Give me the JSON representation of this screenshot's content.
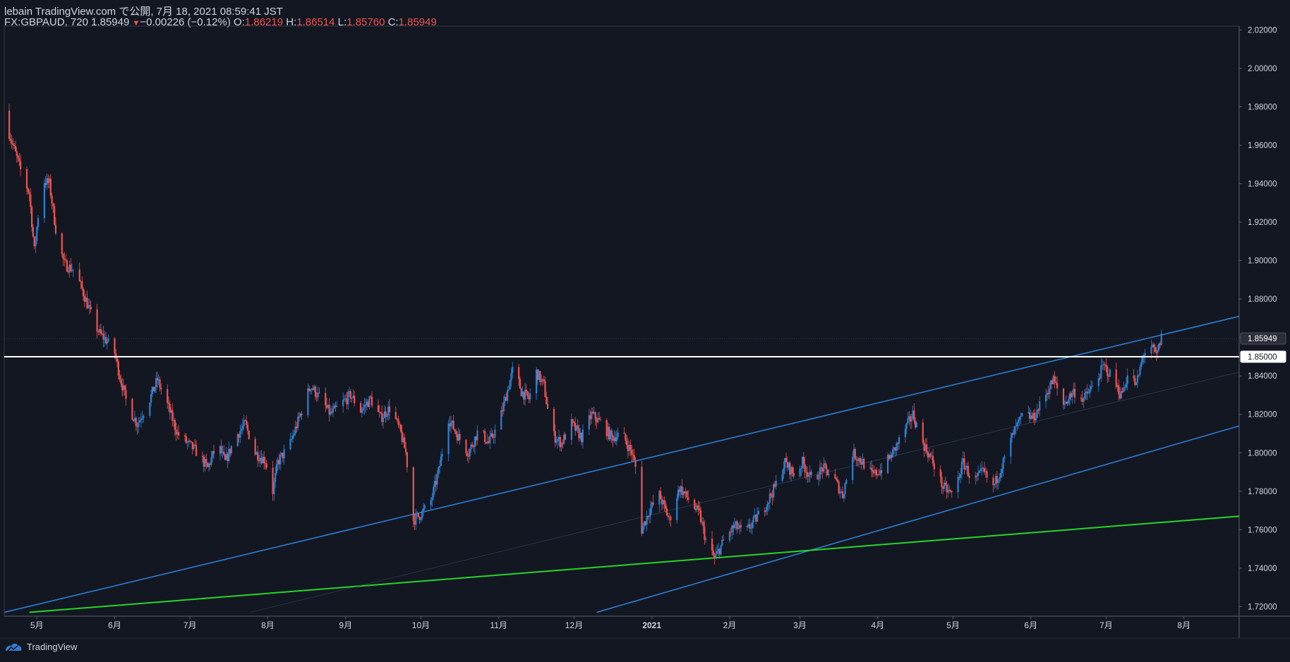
{
  "header": {
    "publish_line": "lebain TradingView.com で公開, 7月 18, 2021 08:59:41 JST",
    "symbol": "FX:GBPAUD, 720",
    "last": "1.85949",
    "change_arrow": "▼",
    "change": "−0.00226 (−0.12%)",
    "o_label": "O:",
    "o_value": "1.86219",
    "h_label": "H:",
    "h_value": "1.86514",
    "l_label": "L:",
    "l_value": "1.85760",
    "c_label": "C:",
    "c_value": "1.85949"
  },
  "footer": {
    "brand": "TradingView"
  },
  "colors": {
    "background": "#131722",
    "up": "#2f80d1",
    "down": "#ef5350",
    "channel": "#2a7fd4",
    "support": "#27d627",
    "level_line": "#ffffff",
    "axis_text": "#d1d4dc"
  },
  "chart_data": {
    "type": "candlestick",
    "symbol": "FX:GBPAUD",
    "interval": "720",
    "ylim": [
      1.715,
      2.022
    ],
    "y_ticks": [
      "1.72000",
      "1.74000",
      "1.76000",
      "1.78000",
      "1.80000",
      "1.82000",
      "1.84000",
      "1.86000",
      "1.88000",
      "1.90000",
      "1.92000",
      "1.94000",
      "1.96000",
      "1.98000",
      "2.00000",
      "2.02000"
    ],
    "x_ticks": [
      {
        "label": "5月",
        "date": "2020-05-01"
      },
      {
        "label": "6月",
        "date": "2020-06-01"
      },
      {
        "label": "7月",
        "date": "2020-07-01"
      },
      {
        "label": "8月",
        "date": "2020-08-01"
      },
      {
        "label": "9月",
        "date": "2020-09-01"
      },
      {
        "label": "10月",
        "date": "2020-10-01"
      },
      {
        "label": "11月",
        "date": "2020-11-01"
      },
      {
        "label": "12月",
        "date": "2020-12-01"
      },
      {
        "label": "2021",
        "date": "2021-01-01"
      },
      {
        "label": "2月",
        "date": "2021-02-01"
      },
      {
        "label": "3月",
        "date": "2021-03-01"
      },
      {
        "label": "4月",
        "date": "2021-04-01"
      },
      {
        "label": "5月",
        "date": "2021-05-01"
      },
      {
        "label": "6月",
        "date": "2021-06-01"
      },
      {
        "label": "7月",
        "date": "2021-07-01"
      },
      {
        "label": "8月",
        "date": "2021-08-01"
      }
    ],
    "price_labels": [
      {
        "value": 1.85949,
        "text": "1.85949"
      },
      {
        "value": 1.85,
        "text": "1.85000"
      }
    ],
    "horizontal_level": 1.85,
    "current_price": 1.85949,
    "closes_anchor_points": [
      [
        "2020-04-18",
        1.975
      ],
      [
        "2020-04-21",
        1.962
      ],
      [
        "2020-04-25",
        1.945
      ],
      [
        "2020-04-28",
        1.935
      ],
      [
        "2020-04-30",
        1.905
      ],
      [
        "2020-05-03",
        1.942
      ],
      [
        "2020-05-06",
        1.94
      ],
      [
        "2020-05-09",
        1.912
      ],
      [
        "2020-05-12",
        1.898
      ],
      [
        "2020-05-16",
        1.895
      ],
      [
        "2020-05-19",
        1.885
      ],
      [
        "2020-05-23",
        1.87
      ],
      [
        "2020-05-26",
        1.862
      ],
      [
        "2020-05-29",
        1.858
      ],
      [
        "2020-06-01",
        1.852
      ],
      [
        "2020-06-03",
        1.84
      ],
      [
        "2020-06-06",
        1.825
      ],
      [
        "2020-06-10",
        1.815
      ],
      [
        "2020-06-15",
        1.828
      ],
      [
        "2020-06-18",
        1.838
      ],
      [
        "2020-06-22",
        1.825
      ],
      [
        "2020-06-26",
        1.81
      ],
      [
        "2020-06-30",
        1.805
      ],
      [
        "2020-07-04",
        1.8
      ],
      [
        "2020-07-08",
        1.792
      ],
      [
        "2020-07-12",
        1.805
      ],
      [
        "2020-07-15",
        1.795
      ],
      [
        "2020-07-19",
        1.808
      ],
      [
        "2020-07-23",
        1.815
      ],
      [
        "2020-07-27",
        1.8
      ],
      [
        "2020-07-31",
        1.796
      ],
      [
        "2020-08-03",
        1.78
      ],
      [
        "2020-08-05",
        1.795
      ],
      [
        "2020-08-10",
        1.805
      ],
      [
        "2020-08-14",
        1.82
      ],
      [
        "2020-08-18",
        1.835
      ],
      [
        "2020-08-22",
        1.828
      ],
      [
        "2020-08-26",
        1.82
      ],
      [
        "2020-08-30",
        1.825
      ],
      [
        "2020-09-03",
        1.83
      ],
      [
        "2020-09-07",
        1.822
      ],
      [
        "2020-09-11",
        1.828
      ],
      [
        "2020-09-15",
        1.818
      ],
      [
        "2020-09-19",
        1.824
      ],
      [
        "2020-09-23",
        1.81
      ],
      [
        "2020-09-25",
        1.8
      ],
      [
        "2020-09-28",
        1.765
      ],
      [
        "2020-10-01",
        1.768
      ],
      [
        "2020-10-05",
        1.775
      ],
      [
        "2020-10-08",
        1.79
      ],
      [
        "2020-10-12",
        1.818
      ],
      [
        "2020-10-16",
        1.808
      ],
      [
        "2020-10-20",
        1.8
      ],
      [
        "2020-10-24",
        1.812
      ],
      [
        "2020-10-28",
        1.805
      ],
      [
        "2020-11-01",
        1.815
      ],
      [
        "2020-11-04",
        1.83
      ],
      [
        "2020-11-07",
        1.845
      ],
      [
        "2020-11-10",
        1.832
      ],
      [
        "2020-11-13",
        1.828
      ],
      [
        "2020-11-16",
        1.842
      ],
      [
        "2020-11-19",
        1.835
      ],
      [
        "2020-11-22",
        1.81
      ],
      [
        "2020-11-26",
        1.805
      ],
      [
        "2020-11-30",
        1.815
      ],
      [
        "2020-12-04",
        1.808
      ],
      [
        "2020-12-08",
        1.82
      ],
      [
        "2020-12-12",
        1.815
      ],
      [
        "2020-12-16",
        1.808
      ],
      [
        "2020-12-20",
        1.81
      ],
      [
        "2020-12-24",
        1.8
      ],
      [
        "2020-12-26",
        1.79
      ],
      [
        "2020-12-28",
        1.76
      ],
      [
        "2020-12-31",
        1.77
      ],
      [
        "2021-01-04",
        1.778
      ],
      [
        "2021-01-08",
        1.765
      ],
      [
        "2021-01-12",
        1.782
      ],
      [
        "2021-01-16",
        1.775
      ],
      [
        "2021-01-20",
        1.768
      ],
      [
        "2021-01-23",
        1.752
      ],
      [
        "2021-01-26",
        1.745
      ],
      [
        "2021-01-30",
        1.755
      ],
      [
        "2021-02-03",
        1.762
      ],
      [
        "2021-02-07",
        1.758
      ],
      [
        "2021-02-11",
        1.765
      ],
      [
        "2021-02-15",
        1.772
      ],
      [
        "2021-02-19",
        1.782
      ],
      [
        "2021-02-23",
        1.795
      ],
      [
        "2021-02-27",
        1.788
      ],
      [
        "2021-03-02",
        1.795
      ],
      [
        "2021-03-06",
        1.785
      ],
      [
        "2021-03-10",
        1.792
      ],
      [
        "2021-03-14",
        1.788
      ],
      [
        "2021-03-18",
        1.778
      ],
      [
        "2021-03-22",
        1.8
      ],
      [
        "2021-03-26",
        1.795
      ],
      [
        "2021-03-30",
        1.788
      ],
      [
        "2021-04-03",
        1.792
      ],
      [
        "2021-04-07",
        1.8
      ],
      [
        "2021-04-11",
        1.81
      ],
      [
        "2021-04-15",
        1.82
      ],
      [
        "2021-04-19",
        1.805
      ],
      [
        "2021-04-23",
        1.795
      ],
      [
        "2021-04-27",
        1.782
      ],
      [
        "2021-05-01",
        1.778
      ],
      [
        "2021-05-05",
        1.795
      ],
      [
        "2021-05-09",
        1.785
      ],
      [
        "2021-05-13",
        1.79
      ],
      [
        "2021-05-17",
        1.782
      ],
      [
        "2021-05-21",
        1.795
      ],
      [
        "2021-05-25",
        1.81
      ],
      [
        "2021-05-29",
        1.82
      ],
      [
        "2021-06-02",
        1.818
      ],
      [
        "2021-06-06",
        1.828
      ],
      [
        "2021-06-10",
        1.838
      ],
      [
        "2021-06-14",
        1.825
      ],
      [
        "2021-06-18",
        1.832
      ],
      [
        "2021-06-22",
        1.828
      ],
      [
        "2021-06-26",
        1.835
      ],
      [
        "2021-06-30",
        1.845
      ],
      [
        "2021-07-03",
        1.84
      ],
      [
        "2021-07-07",
        1.83
      ],
      [
        "2021-07-10",
        1.842
      ],
      [
        "2021-07-13",
        1.835
      ],
      [
        "2021-07-16",
        1.852
      ],
      [
        "2021-07-19",
        1.855
      ],
      [
        "2021-07-21",
        1.85
      ],
      [
        "2021-07-23",
        1.86
      ]
    ],
    "trendlines": [
      {
        "name": "channel-upper",
        "p1": [
          "2020-04-18",
          1.717
        ],
        "p2": [
          "2021-08-23",
          1.871
        ]
      },
      {
        "name": "channel-lower",
        "p1": [
          "2020-12-10",
          1.717
        ],
        "p2": [
          "2021-08-23",
          1.814
        ]
      },
      {
        "name": "support-green",
        "p1": [
          "2020-04-28",
          1.717
        ],
        "p2": [
          "2021-08-23",
          1.767
        ]
      },
      {
        "name": "channel-mid",
        "p1": [
          "2020-07-25",
          1.717
        ],
        "p2": [
          "2021-08-23",
          1.842
        ]
      }
    ]
  }
}
